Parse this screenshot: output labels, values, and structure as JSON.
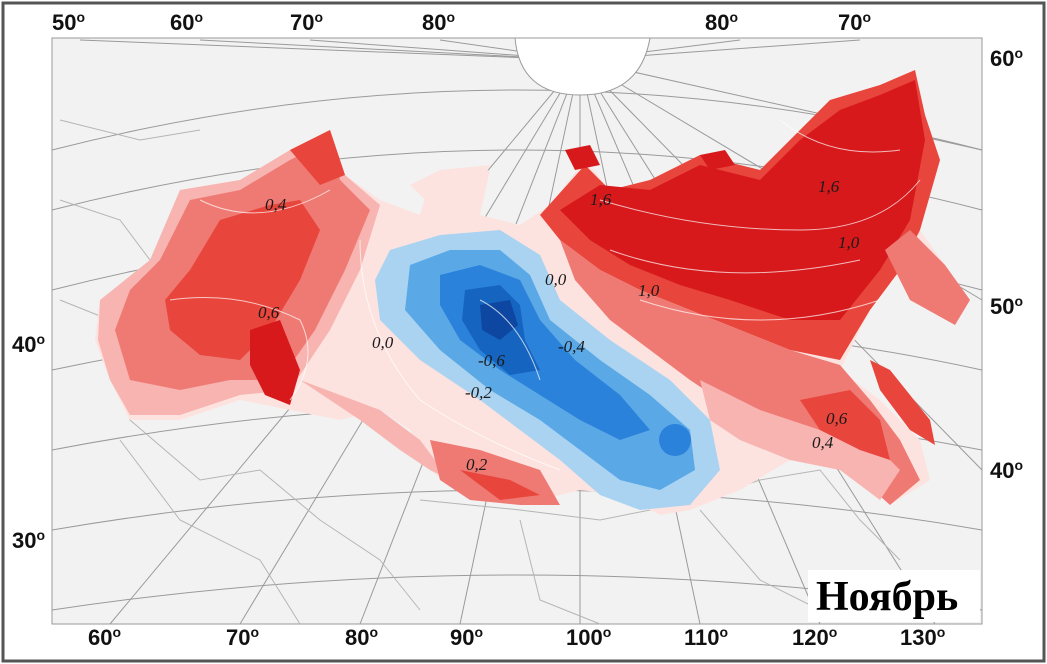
{
  "title": "Ноябрь",
  "degree_symbol": "o",
  "top_labels": [
    "50",
    "60",
    "70",
    "80",
    "80",
    "70"
  ],
  "right_labels": [
    "60",
    "50",
    "40"
  ],
  "left_labels": [
    "40",
    "30"
  ],
  "bottom_labels": [
    "60",
    "70",
    "80",
    "90",
    "100",
    "110",
    "120",
    "130"
  ],
  "isolines": [
    "0,4",
    "0,6",
    "0,0",
    "-0,6",
    "-0,4",
    "-0,2",
    "0,2",
    "0,0",
    "1,6",
    "1,0",
    "1,6",
    "1,0",
    "0,6",
    "0,4"
  ],
  "colors": {
    "dark_red": "#d7191c",
    "red": "#e8453c",
    "mid_red": "#ef7a74",
    "light_red": "#f7b4b0",
    "pale": "#fde3e0",
    "light_blue": "#a9d3f1",
    "mid_blue": "#5aa8e6",
    "blue": "#2a82da",
    "dark_blue": "#1565c0",
    "land": "#f2f2f2",
    "ocean": "#ffffff",
    "grid": "#9a9a9a",
    "border": "#b5b5b5"
  }
}
